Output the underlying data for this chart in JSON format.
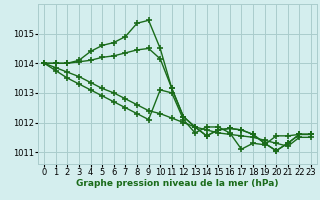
{
  "background_color": "#d4eeee",
  "grid_color": "#aacccc",
  "line_color": "#1a6b1a",
  "line_width": 1.0,
  "marker": "+",
  "marker_size": 4,
  "marker_edge_width": 1.2,
  "xlabel": "Graphe pression niveau de la mer (hPa)",
  "xlabel_fontsize": 6.5,
  "tick_fontsize": 6.0,
  "xlim": [
    -0.5,
    23.5
  ],
  "ylim": [
    1010.6,
    1016.0
  ],
  "yticks": [
    1011,
    1012,
    1013,
    1014,
    1015
  ],
  "xticks": [
    0,
    1,
    2,
    3,
    4,
    5,
    6,
    7,
    8,
    9,
    10,
    11,
    12,
    13,
    14,
    15,
    16,
    17,
    18,
    19,
    20,
    21,
    22,
    23
  ],
  "series": [
    [
      1014.0,
      1014.0,
      1014.0,
      1014.1,
      1014.4,
      1014.6,
      1014.7,
      1014.9,
      1015.35,
      1015.45,
      1014.5,
      1013.15,
      1012.2,
      1011.85,
      1011.55,
      1011.75,
      1011.8,
      1011.75,
      1011.6,
      1011.3,
      1011.05,
      1011.3,
      1011.6,
      1011.6
    ],
    [
      1014.0,
      1014.0,
      1014.0,
      1014.05,
      1014.1,
      1014.2,
      1014.25,
      1014.35,
      1014.45,
      1014.5,
      1014.15,
      1013.15,
      1012.2,
      1011.85,
      1011.55,
      1011.75,
      1011.8,
      1011.75,
      1011.6,
      1011.3,
      1011.05,
      1011.3,
      1011.6,
      1011.6
    ],
    [
      1014.0,
      1013.85,
      1013.7,
      1013.55,
      1013.35,
      1013.15,
      1013.0,
      1012.8,
      1012.6,
      1012.4,
      1012.3,
      1012.15,
      1012.0,
      1011.85,
      1011.75,
      1011.65,
      1011.6,
      1011.55,
      1011.5,
      1011.4,
      1011.3,
      1011.2,
      1011.5,
      1011.5
    ],
    [
      1014.0,
      1013.75,
      1013.5,
      1013.3,
      1013.1,
      1012.9,
      1012.7,
      1012.5,
      1012.3,
      1012.1,
      1013.1,
      1013.0,
      1012.1,
      1011.65,
      1011.85,
      1011.85,
      1011.65,
      1011.1,
      1011.3,
      1011.25,
      1011.55,
      1011.55,
      1011.6,
      1011.6
    ]
  ]
}
